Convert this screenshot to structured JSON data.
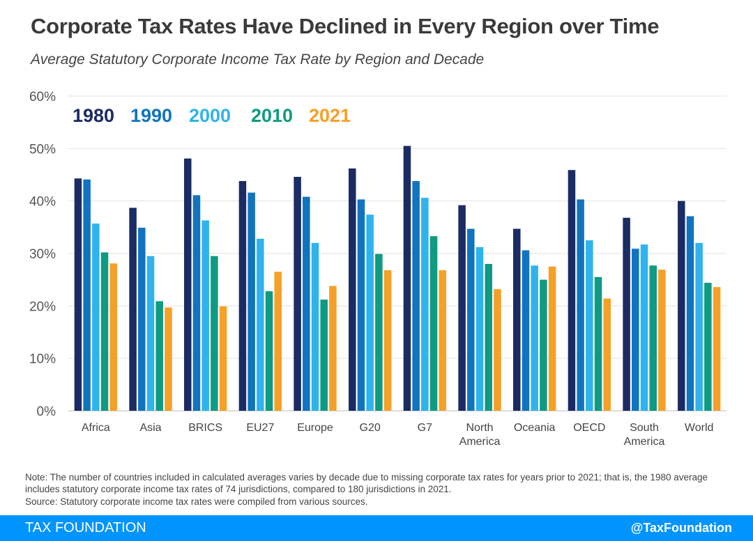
{
  "title": "Corporate Tax Rates Have Declined in Every Region over Time",
  "subtitle": "Average Statutory Corporate Income Tax Rate by Region and Decade",
  "colors": {
    "1980": "#1b2b63",
    "1990": "#1074c0",
    "2000": "#2fb3ec",
    "2010": "#0f9a82",
    "2021": "#f5a027",
    "grid": "#e2e2e2",
    "footer": "#0094ff"
  },
  "chart_data": {
    "type": "bar",
    "title": "Average Statutory Corporate Income Tax Rate by Region and Decade",
    "xlabel": "",
    "ylabel": "",
    "ylim": [
      0,
      60
    ],
    "yticks": [
      "0%",
      "10%",
      "20%",
      "30%",
      "40%",
      "50%",
      "60%"
    ],
    "grid": true,
    "legend_position": "top-left",
    "categories": [
      "Africa",
      "Asia",
      "BRICS",
      "EU27",
      "Europe",
      "G20",
      "G7",
      "North America",
      "Oceania",
      "OECD",
      "South America",
      "World"
    ],
    "series": [
      {
        "name": "1980",
        "values": [
          44.3,
          38.7,
          48.1,
          43.8,
          44.6,
          46.2,
          50.5,
          39.2,
          34.7,
          45.9,
          36.8,
          40.0
        ]
      },
      {
        "name": "1990",
        "values": [
          44.1,
          34.9,
          41.1,
          41.6,
          40.8,
          40.3,
          43.8,
          34.7,
          30.6,
          40.3,
          30.9,
          37.1
        ]
      },
      {
        "name": "2000",
        "values": [
          35.7,
          29.5,
          36.3,
          32.8,
          32.0,
          37.4,
          40.6,
          31.2,
          27.7,
          32.5,
          31.7,
          32.0
        ]
      },
      {
        "name": "2010",
        "values": [
          30.2,
          20.9,
          29.5,
          22.8,
          21.2,
          29.9,
          33.3,
          28.0,
          25.0,
          25.5,
          27.7,
          24.4
        ]
      },
      {
        "name": "2021",
        "values": [
          28.1,
          19.7,
          19.9,
          26.5,
          23.8,
          26.8,
          26.8,
          23.2,
          27.5,
          21.4,
          26.9,
          23.6
        ]
      }
    ]
  },
  "note": "Note: The number of countries included in calculated averages varies by decade due to missing corporate tax rates for years prior to 2021; that is, the 1980 average includes statutory corporate income tax rates of 74 jurisdictions, compared to 180 jurisdictions in 2021.",
  "source": "Source: Statutory corporate income tax rates were compiled from various sources.",
  "footer": {
    "left": "TAX FOUNDATION",
    "right": "@TaxFoundation"
  }
}
